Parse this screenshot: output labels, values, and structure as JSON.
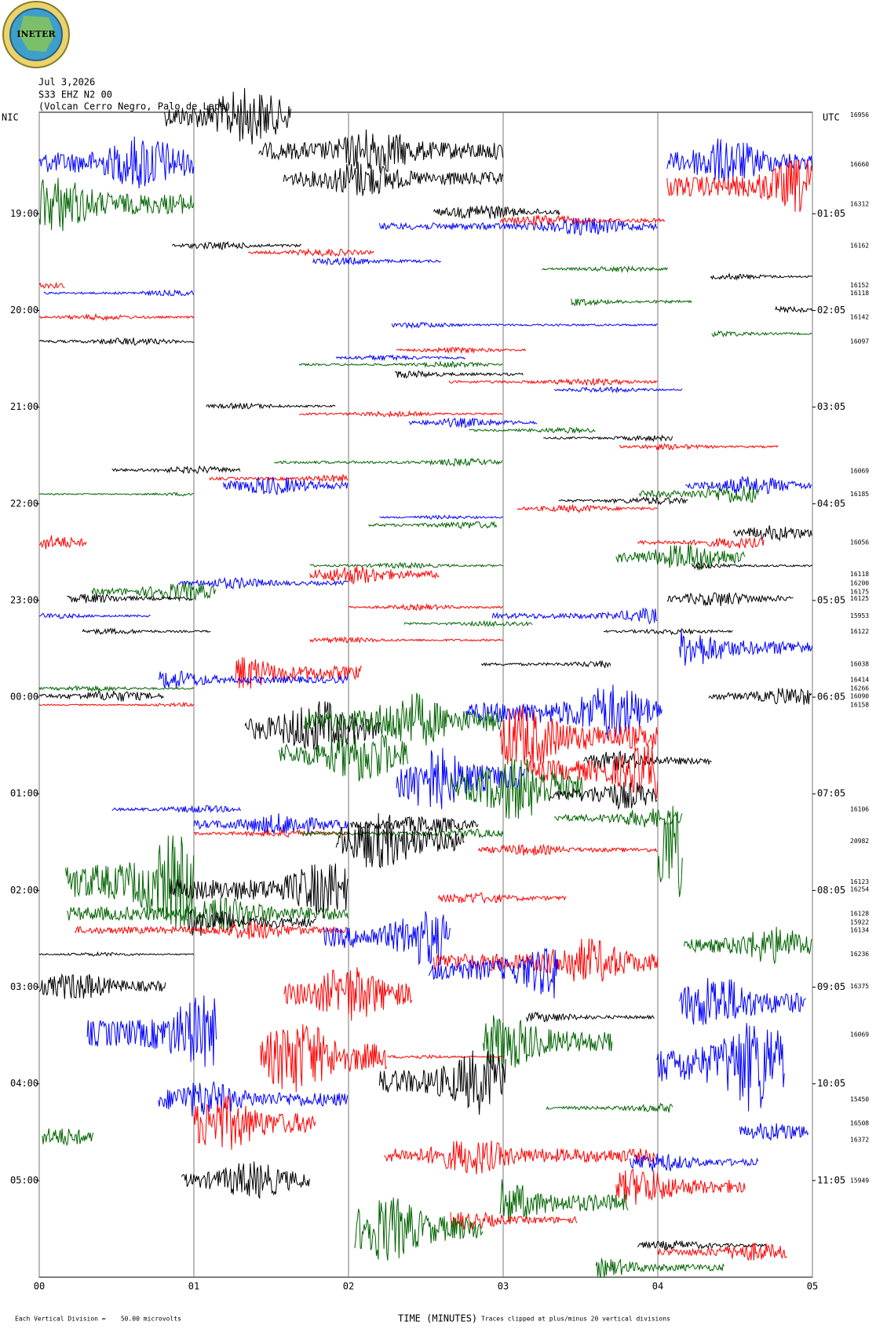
{
  "chart_data": {
    "type": "helicorder",
    "logo": "INETER",
    "header": [
      "Jul 3,2026",
      "S33 EHZ N2 00",
      "(Volcan Cerro Negro, Palo de Lapa)"
    ],
    "left_label": "NIC",
    "right_label": "UTC",
    "xlabel": "TIME (MINUTES)",
    "scale_note": "Each Vertical Division =    50.00 microvolts",
    "clip_note": "Traces clipped at plus/minus 20 vertical divisions",
    "xlim": [
      0,
      5
    ],
    "xticks": [
      {
        "value": 0,
        "label": "00"
      },
      {
        "value": 1,
        "label": "01"
      },
      {
        "value": 2,
        "label": "02"
      },
      {
        "value": 3,
        "label": "03"
      },
      {
        "value": 4,
        "label": "04"
      },
      {
        "value": 5,
        "label": "05"
      }
    ],
    "ylim": [
      17.95,
      30
    ],
    "yticks": [
      {
        "value": 19,
        "label": "19:00"
      },
      {
        "value": 20,
        "label": "20:00"
      },
      {
        "value": 21,
        "label": "21:00"
      },
      {
        "value": 22,
        "label": "22:00"
      },
      {
        "value": 23,
        "label": "23:00"
      },
      {
        "value": 24,
        "label": "00:00"
      },
      {
        "value": 25,
        "label": "01:00"
      },
      {
        "value": 26,
        "label": "02:00"
      },
      {
        "value": 27,
        "label": "03:00"
      },
      {
        "value": 28,
        "label": "04:00"
      },
      {
        "value": 29,
        "label": "05:00"
      }
    ],
    "y2ticks": [
      {
        "value": 19,
        "label": "01:05"
      },
      {
        "value": 20,
        "label": "02:05"
      },
      {
        "value": 21,
        "label": "03:05"
      },
      {
        "value": 22,
        "label": "04:05"
      },
      {
        "value": 23,
        "label": "05:05"
      },
      {
        "value": 24,
        "label": "06:05"
      },
      {
        "value": 25,
        "label": "07:05"
      },
      {
        "value": 26,
        "label": "08:05"
      },
      {
        "value": 27,
        "label": "09:05"
      },
      {
        "value": 28,
        "label": "10:05"
      },
      {
        "value": 29,
        "label": "11:05"
      }
    ],
    "side_values": [
      [
        17.98,
        16956
      ],
      [
        18.49,
        16660
      ],
      [
        18.9,
        16312
      ],
      [
        19.33,
        16162
      ],
      [
        19.74,
        16152
      ],
      [
        19.82,
        16118
      ],
      [
        20.07,
        16142
      ],
      [
        20.32,
        16097
      ],
      [
        21.66,
        16069
      ],
      [
        21.9,
        16185
      ],
      [
        22.4,
        16056
      ],
      [
        22.73,
        16118
      ],
      [
        22.82,
        16200
      ],
      [
        22.91,
        16175
      ],
      [
        22.98,
        16125
      ],
      [
        23.16,
        15953
      ],
      [
        23.32,
        16122
      ],
      [
        23.66,
        16038
      ],
      [
        23.82,
        16414
      ],
      [
        23.91,
        16266
      ],
      [
        23.99,
        16090
      ],
      [
        24.08,
        16158
      ],
      [
        25.16,
        16106
      ],
      [
        25.49,
        20982
      ],
      [
        25.91,
        16123
      ],
      [
        25.99,
        16254
      ],
      [
        26.24,
        16128
      ],
      [
        26.33,
        15922
      ],
      [
        26.41,
        16134
      ],
      [
        26.66,
        16236
      ],
      [
        26.99,
        16375
      ],
      [
        27.49,
        16069
      ],
      [
        28.16,
        15450
      ],
      [
        28.41,
        16508
      ],
      [
        28.58,
        16372
      ],
      [
        29.0,
        15949
      ]
    ],
    "colors": [
      "#000000",
      "#ff0000",
      "#0000ff",
      "#006400"
    ],
    "traces": [
      [
        17.99,
        0.81,
        1.63,
        0.3,
        0
      ],
      [
        18.47,
        0,
        1.0,
        0.3,
        2
      ],
      [
        18.35,
        1.42,
        3.0,
        0.25,
        0
      ],
      [
        18.64,
        1.58,
        3.0,
        0.2,
        0
      ],
      [
        18.9,
        0,
        1.0,
        0.3,
        3
      ],
      [
        18.46,
        4.06,
        5,
        0.25,
        2
      ],
      [
        18.72,
        4.06,
        5,
        0.3,
        1
      ],
      [
        18.98,
        2.55,
        3.37,
        0.08,
        0
      ],
      [
        19.13,
        2.2,
        4.0,
        0.1,
        2
      ],
      [
        19.07,
        2.98,
        4.05,
        0.06,
        1
      ],
      [
        19.33,
        0.86,
        1.7,
        0.04,
        0
      ],
      [
        19.4,
        1.35,
        2.17,
        0.04,
        1
      ],
      [
        19.49,
        1.77,
        2.6,
        0.04,
        2
      ],
      [
        19.57,
        3.25,
        4.07,
        0.03,
        3
      ],
      [
        19.65,
        4.34,
        5,
        0.03,
        0
      ],
      [
        19.74,
        0,
        0.17,
        0.03,
        1
      ],
      [
        19.82,
        0.03,
        1.0,
        0.03,
        2
      ],
      [
        19.91,
        3.44,
        4.22,
        0.04,
        3
      ],
      [
        19.99,
        4.76,
        5,
        0.03,
        0
      ],
      [
        20.07,
        0,
        1.0,
        0.03,
        1
      ],
      [
        20.15,
        2.28,
        4.0,
        0.03,
        2
      ],
      [
        20.24,
        4.35,
        5,
        0.03,
        3
      ],
      [
        20.32,
        0,
        1.0,
        0.04,
        0
      ],
      [
        20.41,
        2.31,
        3.15,
        0.03,
        1
      ],
      [
        20.49,
        1.92,
        2.76,
        0.03,
        2
      ],
      [
        20.56,
        1.68,
        3.0,
        0.03,
        3
      ],
      [
        20.66,
        2.3,
        3.13,
        0.04,
        0
      ],
      [
        20.74,
        2.65,
        4.0,
        0.04,
        1
      ],
      [
        20.82,
        3.33,
        4.16,
        0.03,
        2
      ],
      [
        20.99,
        1.08,
        1.92,
        0.03,
        0
      ],
      [
        21.07,
        1.68,
        3.0,
        0.03,
        1
      ],
      [
        21.16,
        2.39,
        3.22,
        0.05,
        2
      ],
      [
        21.24,
        2.78,
        3.6,
        0.03,
        3
      ],
      [
        21.32,
        3.26,
        4.1,
        0.03,
        0
      ],
      [
        21.41,
        3.75,
        4.78,
        0.03,
        1
      ],
      [
        21.65,
        0.47,
        1.3,
        0.04,
        0
      ],
      [
        21.57,
        1.52,
        3.0,
        0.04,
        3
      ],
      [
        21.74,
        1.1,
        2.0,
        0.04,
        1
      ],
      [
        21.81,
        1.19,
        2.0,
        0.1,
        2
      ],
      [
        21.9,
        0,
        1.0,
        0.02,
        3
      ],
      [
        21.81,
        4.18,
        5,
        0.1,
        2
      ],
      [
        21.97,
        3.36,
        4.2,
        0.04,
        0
      ],
      [
        22.05,
        3.09,
        4.0,
        0.04,
        1
      ],
      [
        21.9,
        3.88,
        4.65,
        0.1,
        3
      ],
      [
        22.14,
        2.2,
        3.0,
        0.02,
        2
      ],
      [
        22.22,
        2.13,
        2.96,
        0.04,
        3
      ],
      [
        22.3,
        4.49,
        5,
        0.08,
        0
      ],
      [
        22.4,
        0,
        0.31,
        0.08,
        1
      ],
      [
        22.4,
        3.87,
        4.69,
        0.06,
        1
      ],
      [
        22.55,
        3.73,
        4.57,
        0.15,
        3
      ],
      [
        22.64,
        4.22,
        5,
        0.03,
        0
      ],
      [
        22.64,
        1.75,
        3.0,
        0.03,
        3
      ],
      [
        22.73,
        1.75,
        2.59,
        0.1,
        1
      ],
      [
        22.82,
        0.9,
        2.0,
        0.06,
        2
      ],
      [
        22.91,
        0.34,
        1.15,
        0.1,
        3
      ],
      [
        22.98,
        0.18,
        1.0,
        0.05,
        0
      ],
      [
        22.98,
        4.06,
        4.88,
        0.08,
        0
      ],
      [
        23.07,
        2.0,
        3.0,
        0.03,
        1
      ],
      [
        23.16,
        0,
        0.72,
        0.03,
        2
      ],
      [
        23.16,
        2.93,
        4.0,
        0.08,
        2
      ],
      [
        23.24,
        2.36,
        3.19,
        0.03,
        3
      ],
      [
        23.32,
        0.28,
        1.11,
        0.03,
        0
      ],
      [
        23.32,
        3.65,
        4.49,
        0.03,
        0
      ],
      [
        23.41,
        1.75,
        3.0,
        0.03,
        1
      ],
      [
        23.49,
        4.14,
        5,
        0.2,
        2
      ],
      [
        23.66,
        2.86,
        3.7,
        0.04,
        0
      ],
      [
        23.75,
        1.27,
        2.09,
        0.2,
        1
      ],
      [
        23.82,
        0.77,
        2.0,
        0.1,
        2
      ],
      [
        23.91,
        0,
        1.0,
        0.03,
        3
      ],
      [
        23.99,
        0,
        0.81,
        0.06,
        0
      ],
      [
        23.99,
        4.33,
        5,
        0.1,
        0
      ],
      [
        24.08,
        0,
        1.0,
        0.02,
        1
      ],
      [
        24.16,
        2.76,
        4.03,
        0.3,
        2
      ],
      [
        24.33,
        1.33,
        2.21,
        0.3,
        0
      ],
      [
        24.25,
        1.71,
        3.0,
        0.3,
        3
      ],
      [
        24.42,
        2.98,
        4.0,
        0.35,
        1
      ],
      [
        24.59,
        1.55,
        2.39,
        0.3,
        3
      ],
      [
        24.66,
        3.52,
        4.35,
        0.1,
        0
      ],
      [
        24.84,
        2.31,
        3.14,
        0.35,
        2
      ],
      [
        24.76,
        3.14,
        4.0,
        0.3,
        1
      ],
      [
        24.93,
        2.66,
        3.52,
        0.35,
        3
      ],
      [
        25.01,
        3.3,
        4.0,
        0.15,
        0
      ],
      [
        25.16,
        0.47,
        1.31,
        0.04,
        2
      ],
      [
        25.25,
        3.33,
        4.16,
        0.1,
        3
      ],
      [
        25.32,
        1.0,
        2.0,
        0.12,
        2
      ],
      [
        25.32,
        2.01,
        2.84,
        0.1,
        0
      ],
      [
        25.41,
        1.0,
        2.0,
        0.04,
        1
      ],
      [
        25.41,
        1.69,
        3.0,
        0.05,
        3
      ],
      [
        25.49,
        1.92,
        2.75,
        0.3,
        0
      ],
      [
        25.58,
        2.84,
        4.0,
        0.06,
        1
      ],
      [
        25.58,
        4.0,
        4.16,
        0.5,
        3
      ],
      [
        25.91,
        0.17,
        1.0,
        0.5,
        3
      ],
      [
        25.99,
        0.85,
        2.0,
        0.3,
        0
      ],
      [
        26.08,
        2.58,
        3.41,
        0.06,
        1
      ],
      [
        26.24,
        0.18,
        2.0,
        0.2,
        3
      ],
      [
        26.33,
        0.96,
        1.79,
        0.15,
        0
      ],
      [
        26.41,
        0.23,
        2.0,
        0.1,
        1
      ],
      [
        26.49,
        1.84,
        2.66,
        0.3,
        2
      ],
      [
        26.66,
        0,
        1.0,
        0.02,
        0
      ],
      [
        26.74,
        2.55,
        4.0,
        0.25,
        1
      ],
      [
        26.82,
        2.52,
        3.36,
        0.3,
        2
      ],
      [
        26.57,
        4.17,
        5,
        0.2,
        3
      ],
      [
        26.99,
        0,
        0.82,
        0.15,
        0
      ],
      [
        27.07,
        1.58,
        2.41,
        0.3,
        1
      ],
      [
        27.16,
        4.14,
        4.96,
        0.3,
        2
      ],
      [
        27.31,
        3.15,
        3.98,
        0.05,
        0
      ],
      [
        27.48,
        0.31,
        1.15,
        0.4,
        2
      ],
      [
        27.56,
        2.87,
        3.71,
        0.3,
        3
      ],
      [
        27.72,
        1.43,
        2.25,
        0.4,
        1
      ],
      [
        27.72,
        2.25,
        3.0,
        0.02,
        1
      ],
      [
        27.81,
        3.99,
        4.82,
        0.5,
        2
      ],
      [
        27.98,
        2.2,
        3.02,
        0.35,
        0
      ],
      [
        28.16,
        0.77,
        2.0,
        0.2,
        2
      ],
      [
        28.25,
        3.28,
        4.1,
        0.05,
        3
      ],
      [
        28.41,
        1.0,
        1.79,
        0.3,
        1
      ],
      [
        28.49,
        4.53,
        4.98,
        0.1,
        2
      ],
      [
        28.55,
        0.02,
        0.35,
        0.1,
        3
      ],
      [
        28.74,
        2.23,
        4.0,
        0.2,
        1
      ],
      [
        28.81,
        3.82,
        4.65,
        0.1,
        2
      ],
      [
        29.0,
        0.92,
        1.75,
        0.2,
        0
      ],
      [
        29.06,
        3.73,
        4.57,
        0.2,
        1
      ],
      [
        29.23,
        2.98,
        3.81,
        0.25,
        3
      ],
      [
        29.41,
        2.66,
        3.48,
        0.1,
        1
      ],
      [
        29.5,
        2.04,
        2.87,
        0.35,
        3
      ],
      [
        29.67,
        3.87,
        4.7,
        0.05,
        0
      ],
      [
        29.74,
        4.0,
        4.84,
        0.1,
        1
      ],
      [
        29.9,
        3.6,
        4.43,
        0.1,
        3
      ]
    ]
  }
}
